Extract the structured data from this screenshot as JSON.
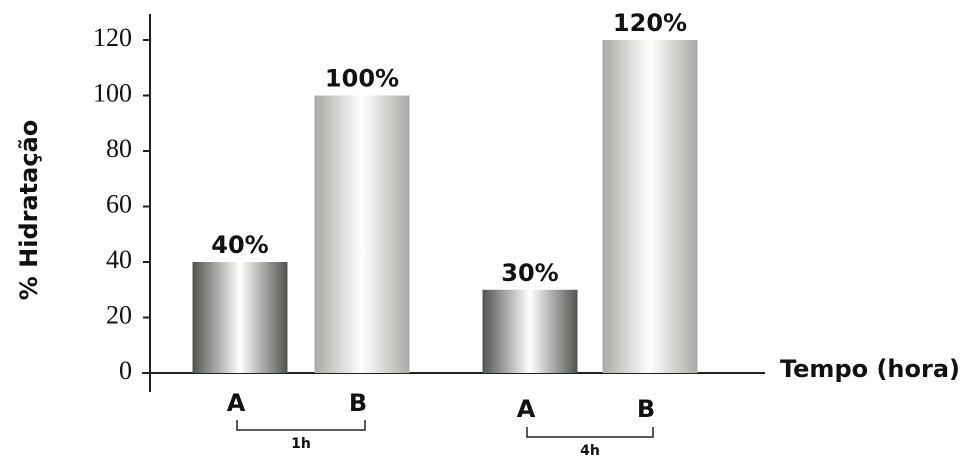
{
  "chart_data": {
    "type": "bar",
    "y_label": "% Hidratação",
    "x_label": "Tempo (hora)",
    "categories": [
      "A",
      "B",
      "A",
      "B"
    ],
    "groups": [
      "1h",
      "4h"
    ],
    "values": [
      40,
      100,
      30,
      120
    ],
    "value_labels": [
      "40%",
      "100%",
      "30%",
      "120%"
    ],
    "colors": [
      "#50534e",
      "#a9aaa4",
      "#50534e",
      "#a9aaa4"
    ],
    "ylim": [
      0,
      120
    ],
    "yticks": [
      0,
      20,
      40,
      60,
      80,
      100,
      120
    ],
    "grid": false
  }
}
